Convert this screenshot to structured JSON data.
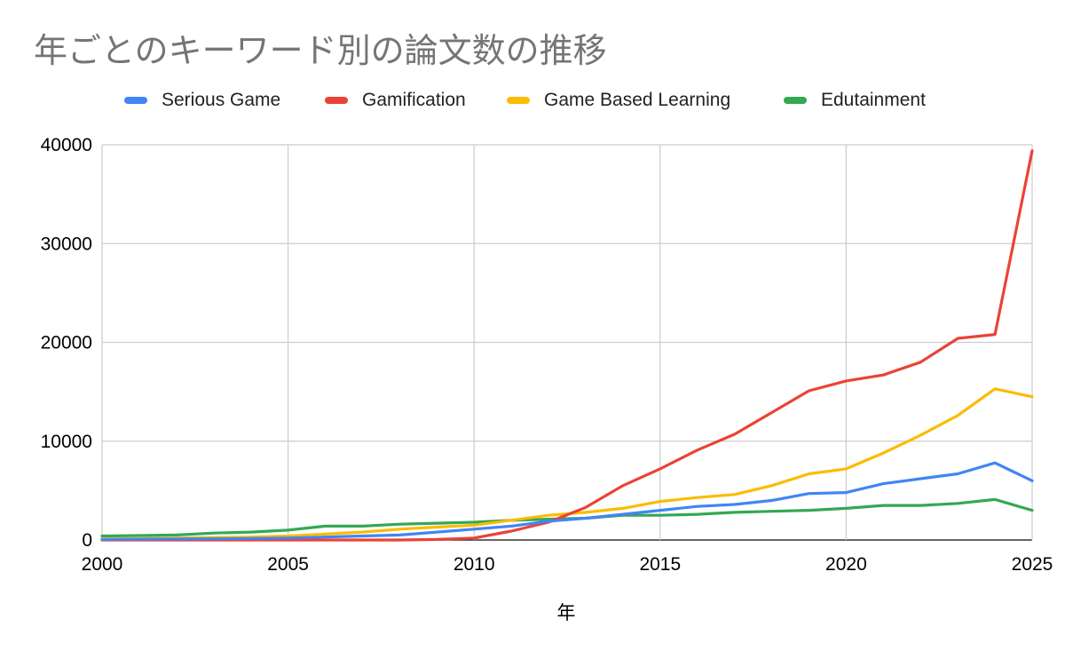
{
  "chart_data": {
    "type": "line",
    "title": "年ごとのキーワード別の論文数の推移",
    "xlabel": "年",
    "ylabel": "",
    "xlim": [
      2000,
      2025
    ],
    "ylim": [
      0,
      40000
    ],
    "x_ticks": [
      "2000",
      "2005",
      "2010",
      "2015",
      "2020",
      "2025"
    ],
    "y_ticks": [
      "0",
      "10000",
      "20000",
      "30000",
      "40000"
    ],
    "grid": true,
    "legend_position": "top",
    "x": [
      2000,
      2001,
      2002,
      2003,
      2004,
      2005,
      2006,
      2007,
      2008,
      2009,
      2010,
      2011,
      2012,
      2013,
      2014,
      2015,
      2016,
      2017,
      2018,
      2019,
      2020,
      2021,
      2022,
      2023,
      2024,
      2025
    ],
    "series": [
      {
        "name": "Serious Game",
        "color": "#4285F4",
        "values": [
          50,
          80,
          100,
          120,
          150,
          200,
          300,
          400,
          500,
          800,
          1100,
          1400,
          1900,
          2200,
          2600,
          3000,
          3400,
          3600,
          4000,
          4700,
          4800,
          5700,
          6200,
          6700,
          7800,
          6000
        ]
      },
      {
        "name": "Gamification",
        "color": "#EA4335",
        "values": [
          0,
          0,
          0,
          0,
          0,
          0,
          0,
          0,
          0,
          50,
          200,
          900,
          1800,
          3300,
          5500,
          7200,
          9100,
          10700,
          12900,
          15100,
          16100,
          16700,
          18000,
          20400,
          20800,
          39400
        ]
      },
      {
        "name": "Game Based Learning",
        "color": "#FBBC04",
        "values": [
          100,
          150,
          200,
          250,
          300,
          400,
          600,
          800,
          1100,
          1300,
          1500,
          2000,
          2500,
          2800,
          3200,
          3900,
          4300,
          4600,
          5500,
          6700,
          7200,
          8800,
          10600,
          12600,
          15300,
          14500
        ]
      },
      {
        "name": "Edutainment",
        "color": "#34A853",
        "values": [
          400,
          450,
          500,
          700,
          800,
          1000,
          1400,
          1400,
          1600,
          1700,
          1800,
          2000,
          2100,
          2200,
          2500,
          2500,
          2600,
          2800,
          2900,
          3000,
          3200,
          3500,
          3500,
          3700,
          4100,
          3000
        ]
      }
    ]
  }
}
